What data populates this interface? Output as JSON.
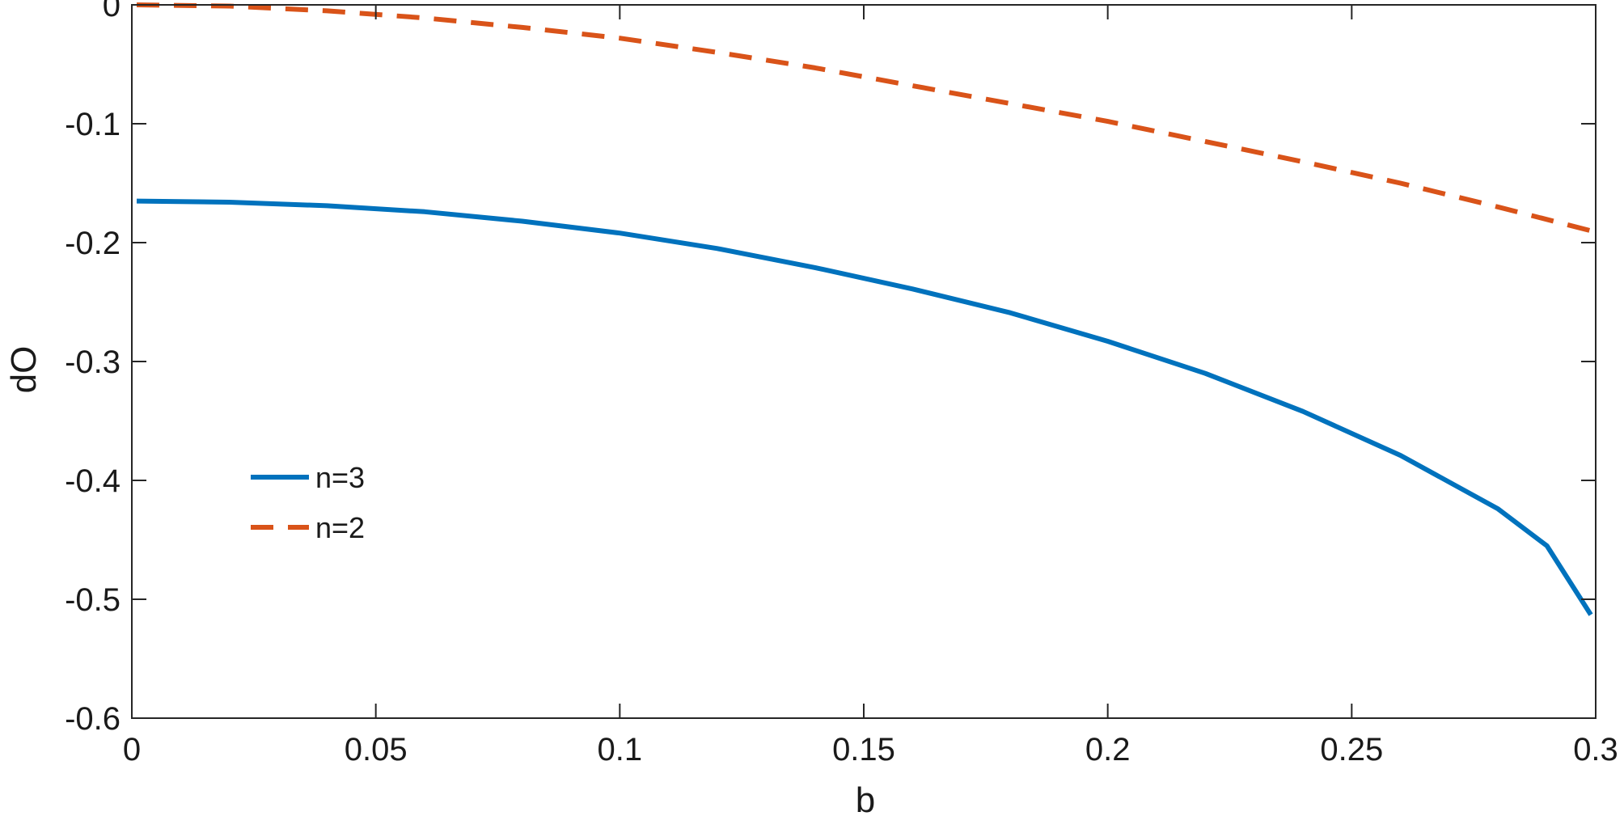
{
  "chart_data": {
    "type": "line",
    "title": "",
    "xlabel": "b",
    "ylabel": "dO",
    "xlim": [
      0,
      0.3
    ],
    "ylim": [
      -0.6,
      0
    ],
    "xticks": [
      0,
      0.05,
      0.1,
      0.15,
      0.2,
      0.25,
      0.3
    ],
    "xtick_labels": [
      "0",
      "0.05",
      "0.1",
      "0.15",
      "0.2",
      "0.25",
      "0.3"
    ],
    "yticks": [
      0,
      -0.1,
      -0.2,
      -0.3,
      -0.4,
      -0.5,
      -0.6
    ],
    "ytick_labels": [
      "0",
      "-0.1",
      "-0.2",
      "-0.3",
      "-0.4",
      "-0.5",
      "-0.6"
    ],
    "grid": false,
    "legend_position": "left",
    "series": [
      {
        "name": "n=3",
        "color": "#0072BD",
        "style": "solid",
        "x": [
          0.001,
          0.02,
          0.04,
          0.06,
          0.08,
          0.1,
          0.12,
          0.14,
          0.16,
          0.18,
          0.2,
          0.22,
          0.24,
          0.26,
          0.28,
          0.29,
          0.299
        ],
        "y": [
          -0.165,
          -0.166,
          -0.169,
          -0.174,
          -0.182,
          -0.192,
          -0.205,
          -0.221,
          -0.239,
          -0.259,
          -0.283,
          -0.31,
          -0.342,
          -0.379,
          -0.424,
          -0.455,
          -0.513
        ]
      },
      {
        "name": "n=2",
        "color": "#D95319",
        "style": "dashed",
        "x": [
          0.001,
          0.02,
          0.04,
          0.06,
          0.08,
          0.1,
          0.12,
          0.14,
          0.16,
          0.18,
          0.2,
          0.22,
          0.24,
          0.26,
          0.28,
          0.299
        ],
        "y": [
          0.0,
          -0.001,
          -0.005,
          -0.011,
          -0.019,
          -0.028,
          -0.04,
          -0.053,
          -0.068,
          -0.083,
          -0.098,
          -0.115,
          -0.132,
          -0.15,
          -0.17,
          -0.19
        ]
      }
    ]
  }
}
